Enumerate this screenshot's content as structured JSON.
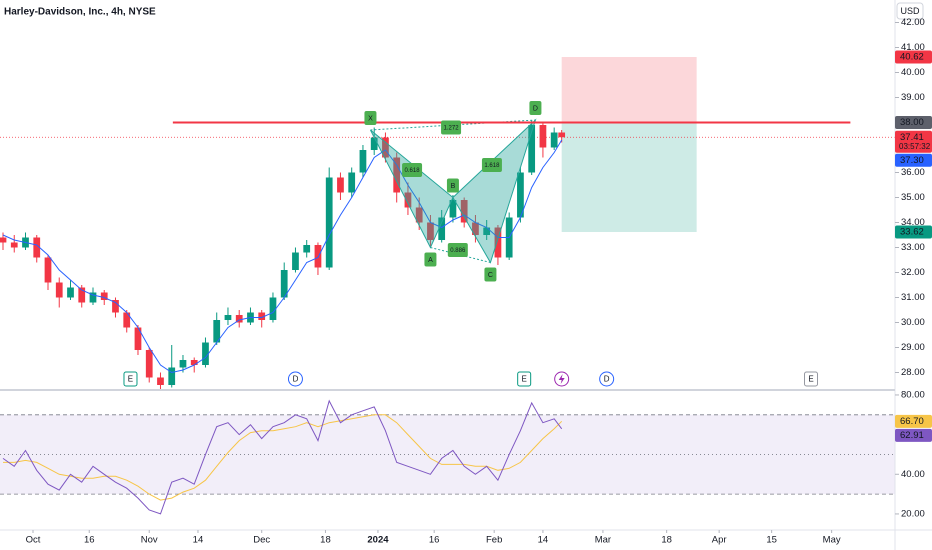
{
  "chart_data": {
    "type": "candlestick",
    "title": "Harley-Davidson, Inc., 4h, NYSE",
    "currency": "USD",
    "up_color": "#089981",
    "down_color": "#f23645",
    "x": [
      -8,
      -5,
      -2,
      1,
      4,
      7,
      10,
      13,
      16,
      19,
      22,
      25,
      28,
      31,
      34,
      37,
      40,
      43,
      46,
      49,
      52,
      55,
      58,
      61,
      64,
      67,
      70,
      73,
      76,
      79,
      82,
      85,
      88,
      91,
      94,
      97,
      100,
      103,
      106,
      109,
      112,
      115,
      118,
      121,
      124,
      127,
      130,
      133,
      136,
      139,
      141
    ],
    "candles": [
      [
        33.4,
        33.6,
        32.9,
        33.2
      ],
      [
        33.2,
        33.5,
        32.8,
        33.0
      ],
      [
        33.0,
        33.6,
        32.9,
        33.4
      ],
      [
        33.4,
        33.5,
        32.4,
        32.6
      ],
      [
        32.6,
        32.7,
        31.3,
        31.6
      ],
      [
        31.6,
        31.8,
        30.6,
        31.0
      ],
      [
        31.0,
        31.7,
        30.9,
        31.4
      ],
      [
        31.4,
        31.5,
        30.6,
        30.8
      ],
      [
        30.8,
        31.4,
        30.7,
        31.2
      ],
      [
        31.2,
        31.3,
        30.7,
        30.9
      ],
      [
        30.9,
        31.0,
        30.2,
        30.4
      ],
      [
        30.4,
        30.5,
        29.6,
        29.8
      ],
      [
        29.8,
        29.9,
        28.7,
        28.9
      ],
      [
        28.9,
        29.0,
        27.6,
        27.8
      ],
      [
        27.8,
        28.0,
        27.3,
        27.5
      ],
      [
        27.5,
        29.1,
        27.4,
        28.2
      ],
      [
        28.2,
        28.7,
        28.0,
        28.5
      ],
      [
        28.5,
        28.6,
        28.0,
        28.3
      ],
      [
        28.3,
        29.4,
        28.2,
        29.2
      ],
      [
        29.2,
        30.4,
        29.1,
        30.1
      ],
      [
        30.1,
        30.6,
        29.9,
        30.3
      ],
      [
        30.3,
        30.5,
        29.8,
        30.0
      ],
      [
        30.0,
        30.6,
        29.9,
        30.4
      ],
      [
        30.4,
        30.5,
        29.8,
        30.1
      ],
      [
        30.1,
        31.2,
        30.0,
        31.0
      ],
      [
        31.0,
        32.4,
        30.9,
        32.1
      ],
      [
        32.1,
        33.0,
        32.0,
        32.8
      ],
      [
        32.8,
        33.3,
        32.6,
        33.1
      ],
      [
        33.1,
        33.2,
        31.9,
        32.2
      ],
      [
        32.2,
        36.2,
        32.1,
        35.8
      ],
      [
        35.8,
        36.0,
        34.9,
        35.2
      ],
      [
        35.2,
        36.2,
        35.0,
        36.0
      ],
      [
        36.0,
        37.1,
        35.8,
        36.9
      ],
      [
        36.9,
        37.8,
        36.7,
        37.4
      ],
      [
        37.4,
        37.6,
        36.4,
        36.6
      ],
      [
        36.6,
        36.8,
        34.8,
        35.2
      ],
      [
        35.2,
        35.6,
        34.3,
        34.6
      ],
      [
        34.6,
        35.0,
        33.7,
        34.0
      ],
      [
        34.0,
        34.3,
        33.0,
        33.3
      ],
      [
        33.3,
        34.5,
        33.2,
        34.2
      ],
      [
        34.2,
        35.1,
        34.0,
        34.9
      ],
      [
        34.9,
        35.0,
        33.8,
        34.0
      ],
      [
        34.0,
        34.3,
        33.2,
        33.5
      ],
      [
        33.5,
        34.1,
        33.3,
        33.8
      ],
      [
        33.8,
        33.9,
        32.3,
        32.6
      ],
      [
        32.6,
        34.4,
        32.5,
        34.2
      ],
      [
        34.2,
        36.2,
        34.0,
        36.0
      ],
      [
        36.0,
        38.1,
        35.9,
        37.9
      ],
      [
        37.9,
        38.0,
        36.6,
        37.0
      ],
      [
        37.0,
        37.8,
        36.9,
        37.6
      ],
      [
        37.6,
        37.7,
        37.2,
        37.41
      ]
    ],
    "ma": {
      "color": "#2962ff",
      "values": [
        33.5,
        33.3,
        33.2,
        33.1,
        32.7,
        32.1,
        31.7,
        31.3,
        31.1,
        31.0,
        30.8,
        30.4,
        29.8,
        29.0,
        28.3,
        28.0,
        28.1,
        28.3,
        28.6,
        29.2,
        29.8,
        30.1,
        30.2,
        30.2,
        30.4,
        31.0,
        31.7,
        32.4,
        32.6,
        33.5,
        34.3,
        35.0,
        35.8,
        36.6,
        36.9,
        36.3,
        35.5,
        34.8,
        34.0,
        33.8,
        34.1,
        34.3,
        34.0,
        33.8,
        33.4,
        33.4,
        34.2,
        35.4,
        36.2,
        36.8,
        37.3
      ]
    },
    "xlim": [
      -8.8,
      229.9
    ],
    "xticks": [
      {
        "value": 0,
        "label": "Oct"
      },
      {
        "value": 15,
        "label": "16"
      },
      {
        "value": 31,
        "label": "Nov"
      },
      {
        "value": 44,
        "label": "14"
      },
      {
        "value": 61,
        "label": "Dec"
      },
      {
        "value": 78,
        "label": "18"
      },
      {
        "value": 92,
        "label": "2024"
      },
      {
        "value": 107,
        "label": "16"
      },
      {
        "value": 123,
        "label": "Feb"
      },
      {
        "value": 136,
        "label": "14"
      },
      {
        "value": 152,
        "label": "Mar"
      },
      {
        "value": 169,
        "label": "18"
      },
      {
        "value": 183,
        "label": "Apr"
      },
      {
        "value": 197,
        "label": "15"
      },
      {
        "value": 213,
        "label": "May"
      }
    ],
    "ylim": [
      27.3,
      42.9
    ],
    "yticks": [
      {
        "value": 28,
        "label": "28.00"
      },
      {
        "value": 29,
        "label": "29.00"
      },
      {
        "value": 30,
        "label": "30.00"
      },
      {
        "value": 31,
        "label": "31.00"
      },
      {
        "value": 32,
        "label": "32.00"
      },
      {
        "value": 33,
        "label": "33.00"
      },
      {
        "value": 34,
        "label": "34.00"
      },
      {
        "value": 35,
        "label": "35.00"
      },
      {
        "value": 36,
        "label": "36.00"
      },
      {
        "value": 39,
        "label": "39.00"
      },
      {
        "value": 40,
        "label": "40.00"
      },
      {
        "value": 41,
        "label": "41.00"
      },
      {
        "value": 42,
        "label": "42.00"
      }
    ],
    "price_labels": [
      {
        "value": 40.62,
        "label": "40.62",
        "color": "#f23645"
      },
      {
        "value": 38.0,
        "label": "38.00",
        "color": "#5d606b"
      },
      {
        "value": 37.41,
        "label": "37.41",
        "color": "#f23645",
        "countdown": "03:57:32"
      },
      {
        "value": 37.3,
        "label": "37.30",
        "color": "#2962ff"
      },
      {
        "value": 33.62,
        "label": "33.62",
        "color": "#089981"
      }
    ],
    "resistance": {
      "value": 38.0,
      "x": [
        37.3,
        218
      ],
      "color": "#f23645"
    },
    "position": {
      "x": [
        141,
        177
      ],
      "entry": 38.0,
      "stop": 40.62,
      "target": 33.62
    },
    "pattern": {
      "points": [
        {
          "label": "X",
          "x": 90,
          "y": 37.7
        },
        {
          "label": "A",
          "x": 106,
          "y": 33.0
        },
        {
          "label": "B",
          "x": 112,
          "y": 35.0
        },
        {
          "label": "C",
          "x": 122,
          "y": 32.4
        },
        {
          "label": "D",
          "x": 134,
          "y": 38.1
        }
      ],
      "ratios": [
        {
          "label": "0.618",
          "x": 101.1,
          "y": 36.1
        },
        {
          "label": "1.272",
          "x": 111.5,
          "y": 37.8
        },
        {
          "label": "0.886",
          "x": 113.3,
          "y": 32.9
        },
        {
          "label": "1.618",
          "x": 122.4,
          "y": 36.3
        }
      ]
    },
    "events": [
      {
        "label": "E",
        "x": 26
      },
      {
        "label": "D",
        "x": 70
      },
      {
        "label": "E",
        "x": 131
      },
      {
        "label": null,
        "x": 141
      },
      {
        "label": "D",
        "x": 153
      },
      {
        "label": "E",
        "x": 207.5
      }
    ],
    "rsi": {
      "color": "#7e57c2",
      "ma_color": "#f7c548",
      "values": [
        48,
        44,
        52,
        42,
        35,
        32,
        40,
        36,
        44,
        40,
        36,
        33,
        28,
        22,
        20,
        36,
        38,
        35,
        50,
        64,
        66,
        60,
        65,
        58,
        64,
        66,
        70,
        68,
        57,
        77,
        66,
        70,
        72,
        74,
        62,
        46,
        44,
        42,
        40,
        48,
        52,
        44,
        40,
        44,
        37,
        50,
        62,
        76,
        66,
        68,
        62.91
      ],
      "ma": [
        46,
        46,
        47,
        46,
        43,
        40,
        39,
        38,
        38,
        39,
        39,
        37,
        34,
        30,
        27,
        28,
        31,
        33,
        37,
        44,
        51,
        57,
        61,
        62,
        62,
        63,
        64,
        66,
        64,
        66,
        67,
        68,
        69,
        70,
        70,
        66,
        60,
        54,
        48,
        45,
        45,
        45,
        44,
        44,
        42,
        43,
        46,
        52,
        58,
        63,
        66.7
      ],
      "ylim": [
        11.9,
        82.5
      ],
      "yticks": [
        {
          "value": 20,
          "label": "20.00"
        },
        {
          "value": 40,
          "label": "40.00"
        },
        {
          "value": 80,
          "label": "80.00"
        }
      ],
      "bands": [
        30,
        50,
        70
      ],
      "labels": [
        {
          "value": 66.7,
          "label": "66.70",
          "color": "#f7c548"
        },
        {
          "value": 62.91,
          "label": "62.91",
          "color": "#7e57c2"
        }
      ]
    }
  }
}
